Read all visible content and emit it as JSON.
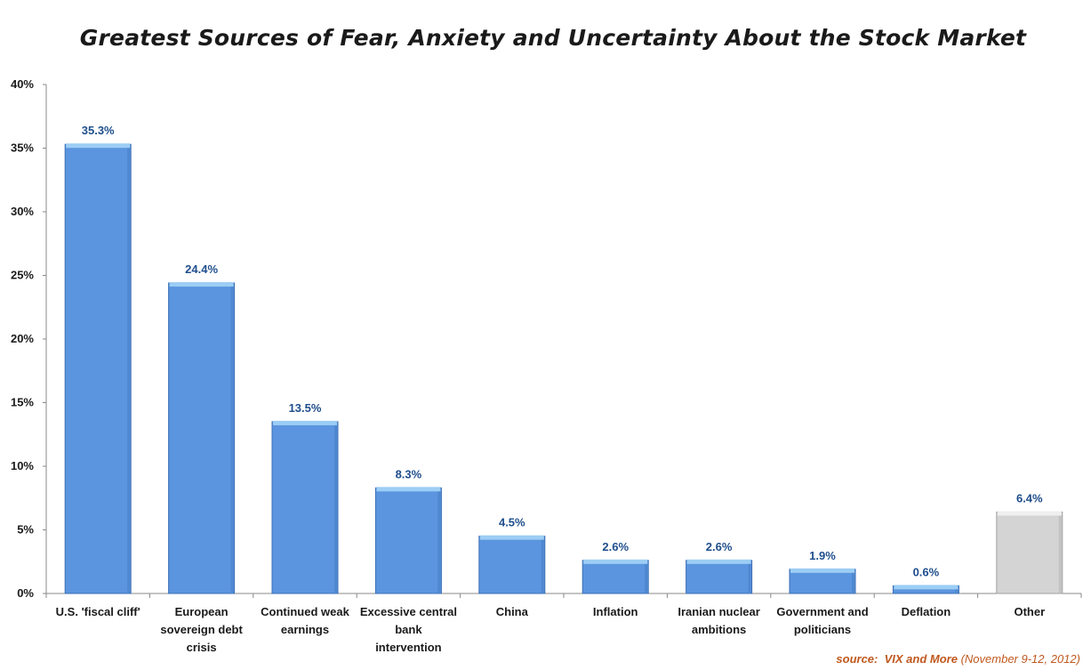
{
  "chart_data": {
    "type": "bar",
    "title": "Greatest Sources of Fear, Anxiety and Uncertainty About the Stock Market",
    "xlabel": "",
    "ylabel": "",
    "ylim": [
      0,
      40
    ],
    "y_ticks": [
      "0%",
      "5%",
      "10%",
      "15%",
      "20%",
      "25%",
      "30%",
      "35%",
      "40%"
    ],
    "grid": false,
    "categories": [
      [
        "U.S. 'fiscal cliff'"
      ],
      [
        "European",
        "sovereign debt",
        "crisis"
      ],
      [
        "Continued weak",
        "earnings"
      ],
      [
        "Excessive central",
        "bank",
        "intervention"
      ],
      [
        "China"
      ],
      [
        "Inflation"
      ],
      [
        "Iranian nuclear",
        "ambitions"
      ],
      [
        "Government and",
        "politicians"
      ],
      [
        "Deflation"
      ],
      [
        "Other"
      ]
    ],
    "values": [
      35.3,
      24.4,
      13.5,
      8.3,
      4.5,
      2.6,
      2.6,
      1.9,
      0.6,
      6.4
    ],
    "data_labels": [
      "35.3%",
      "24.4%",
      "13.5%",
      "8.3%",
      "4.5%",
      "2.6%",
      "2.6%",
      "1.9%",
      "0.6%",
      "6.4%"
    ],
    "highlight_index": 9,
    "colors": {
      "bar": "#5b95df",
      "bar_edge": "#3b6fb5",
      "bar_top": "#9ccdf4",
      "bar_other": "#d4d4d4",
      "bar_other_edge": "#a0a0a0",
      "bar_other_top": "#efefef",
      "data_label": "#1f4e8c",
      "axis": "#888888"
    }
  },
  "source": {
    "prefix": "source:",
    "name": "VIX and More",
    "date": "(November 9-12, 2012)",
    "color": "#c0581e"
  }
}
